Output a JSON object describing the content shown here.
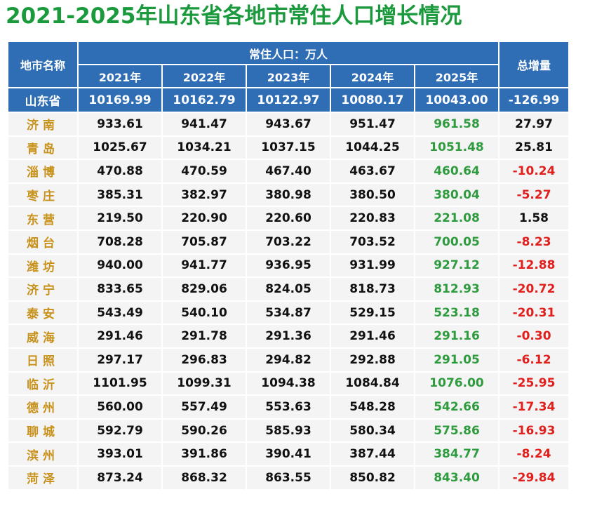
{
  "title": "2021-2025年山东省各地市常住人口增长情况",
  "table": {
    "header": {
      "name": "地市名称",
      "group": "常住人口：万人",
      "years": [
        "2021年",
        "2022年",
        "2023年",
        "2024年",
        "2025年"
      ],
      "total": "总增量"
    },
    "rows": [
      [
        "山东省",
        "10169.99",
        "10162.79",
        "10122.97",
        "10080.17",
        "10043.00",
        "-126.99"
      ],
      [
        "济南",
        "933.61",
        "941.47",
        "943.67",
        "951.47",
        "961.58",
        "27.97"
      ],
      [
        "青岛",
        "1025.67",
        "1034.21",
        "1037.15",
        "1044.25",
        "1051.48",
        "25.81"
      ],
      [
        "淄博",
        "470.88",
        "470.59",
        "467.40",
        "463.67",
        "460.64",
        "-10.24"
      ],
      [
        "枣庄",
        "385.31",
        "382.97",
        "380.98",
        "380.50",
        "380.04",
        "-5.27"
      ],
      [
        "东营",
        "219.50",
        "220.90",
        "220.60",
        "220.83",
        "221.08",
        "1.58"
      ],
      [
        "烟台",
        "708.28",
        "705.87",
        "703.22",
        "703.52",
        "700.05",
        "-8.23"
      ],
      [
        "潍坊",
        "940.00",
        "941.77",
        "936.95",
        "931.99",
        "927.12",
        "-12.88"
      ],
      [
        "济宁",
        "833.65",
        "829.06",
        "824.05",
        "818.73",
        "812.93",
        "-20.72"
      ],
      [
        "泰安",
        "543.49",
        "540.10",
        "534.87",
        "529.15",
        "523.18",
        "-20.31"
      ],
      [
        "威海",
        "291.46",
        "291.78",
        "291.36",
        "291.46",
        "291.16",
        "-0.30"
      ],
      [
        "日照",
        "297.17",
        "296.83",
        "294.82",
        "292.88",
        "291.05",
        "-6.12"
      ],
      [
        "临沂",
        "1101.95",
        "1099.31",
        "1094.38",
        "1084.84",
        "1076.00",
        "-25.95"
      ],
      [
        "德州",
        "560.00",
        "557.49",
        "553.63",
        "548.28",
        "542.66",
        "-17.34"
      ],
      [
        "聊城",
        "592.79",
        "590.26",
        "585.93",
        "580.34",
        "575.86",
        "-16.93"
      ],
      [
        "滨州",
        "393.01",
        "391.86",
        "390.41",
        "387.44",
        "384.77",
        "-8.24"
      ],
      [
        "菏泽",
        "873.24",
        "868.32",
        "863.55",
        "850.82",
        "843.40",
        "-29.84"
      ]
    ]
  }
}
